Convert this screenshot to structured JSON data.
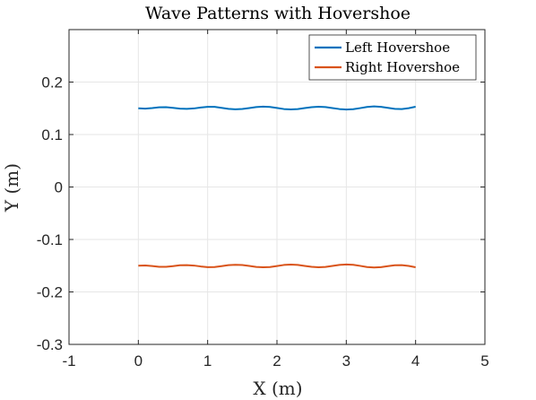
{
  "chart_data": {
    "type": "line",
    "title": "Wave Patterns with Hovershoe",
    "xlabel": "X (m)",
    "ylabel": "Y (m)",
    "xlim": [
      -1,
      5
    ],
    "ylim": [
      -0.3,
      0.3
    ],
    "xticks": [
      -1,
      0,
      1,
      2,
      3,
      4,
      5
    ],
    "xtick_labels": [
      "-1",
      "0",
      "1",
      "2",
      "3",
      "4",
      "5"
    ],
    "yticks": [
      -0.3,
      -0.2,
      -0.1,
      0,
      0.1,
      0.2
    ],
    "ytick_labels": [
      "-0.3",
      "-0.2",
      "-0.1",
      "0",
      "0.1",
      "0.2"
    ],
    "grid": true,
    "legend_position": "top-right",
    "series": [
      {
        "name": "Left Hovershoe",
        "color": "#0072BD",
        "x": [
          0,
          0.1,
          0.2,
          0.3,
          0.4,
          0.5,
          0.6,
          0.7,
          0.8,
          0.9,
          1.0,
          1.1,
          1.2,
          1.3,
          1.4,
          1.5,
          1.6,
          1.7,
          1.8,
          1.9,
          2.0,
          2.1,
          2.2,
          2.3,
          2.4,
          2.5,
          2.6,
          2.7,
          2.8,
          2.9,
          3.0,
          3.1,
          3.2,
          3.3,
          3.4,
          3.5,
          3.6,
          3.7,
          3.8,
          3.9,
          4.0
        ],
        "y": [
          0.1499,
          0.1493,
          0.1504,
          0.152,
          0.1522,
          0.1509,
          0.1493,
          0.1489,
          0.1497,
          0.1515,
          0.1527,
          0.1527,
          0.1509,
          0.149,
          0.1481,
          0.1487,
          0.1505,
          0.1524,
          0.1532,
          0.1525,
          0.1506,
          0.1486,
          0.1478,
          0.1485,
          0.1504,
          0.1522,
          0.153,
          0.1524,
          0.1505,
          0.1486,
          0.1476,
          0.1482,
          0.1503,
          0.1526,
          0.1536,
          0.1528,
          0.1508,
          0.149,
          0.1486,
          0.1502,
          0.153
        ]
      },
      {
        "name": "Right Hovershoe",
        "color": "#D95319",
        "x": [
          0,
          0.1,
          0.2,
          0.3,
          0.4,
          0.5,
          0.6,
          0.7,
          0.8,
          0.9,
          1.0,
          1.1,
          1.2,
          1.3,
          1.4,
          1.5,
          1.6,
          1.7,
          1.8,
          1.9,
          2.0,
          2.1,
          2.2,
          2.3,
          2.4,
          2.5,
          2.6,
          2.7,
          2.8,
          2.9,
          3.0,
          3.1,
          3.2,
          3.3,
          3.4,
          3.5,
          3.6,
          3.7,
          3.8,
          3.9,
          4.0
        ],
        "y": [
          -0.1501,
          -0.1495,
          -0.1506,
          -0.1521,
          -0.1522,
          -0.1508,
          -0.1492,
          -0.1489,
          -0.1497,
          -0.1514,
          -0.1528,
          -0.1525,
          -0.1508,
          -0.1489,
          -0.1482,
          -0.1488,
          -0.1505,
          -0.1523,
          -0.1531,
          -0.1525,
          -0.1506,
          -0.1486,
          -0.1478,
          -0.1485,
          -0.1504,
          -0.1522,
          -0.153,
          -0.1523,
          -0.1504,
          -0.1485,
          -0.1476,
          -0.1483,
          -0.1503,
          -0.1525,
          -0.1534,
          -0.1527,
          -0.1508,
          -0.1492,
          -0.1489,
          -0.1504,
          -0.153
        ]
      }
    ]
  }
}
